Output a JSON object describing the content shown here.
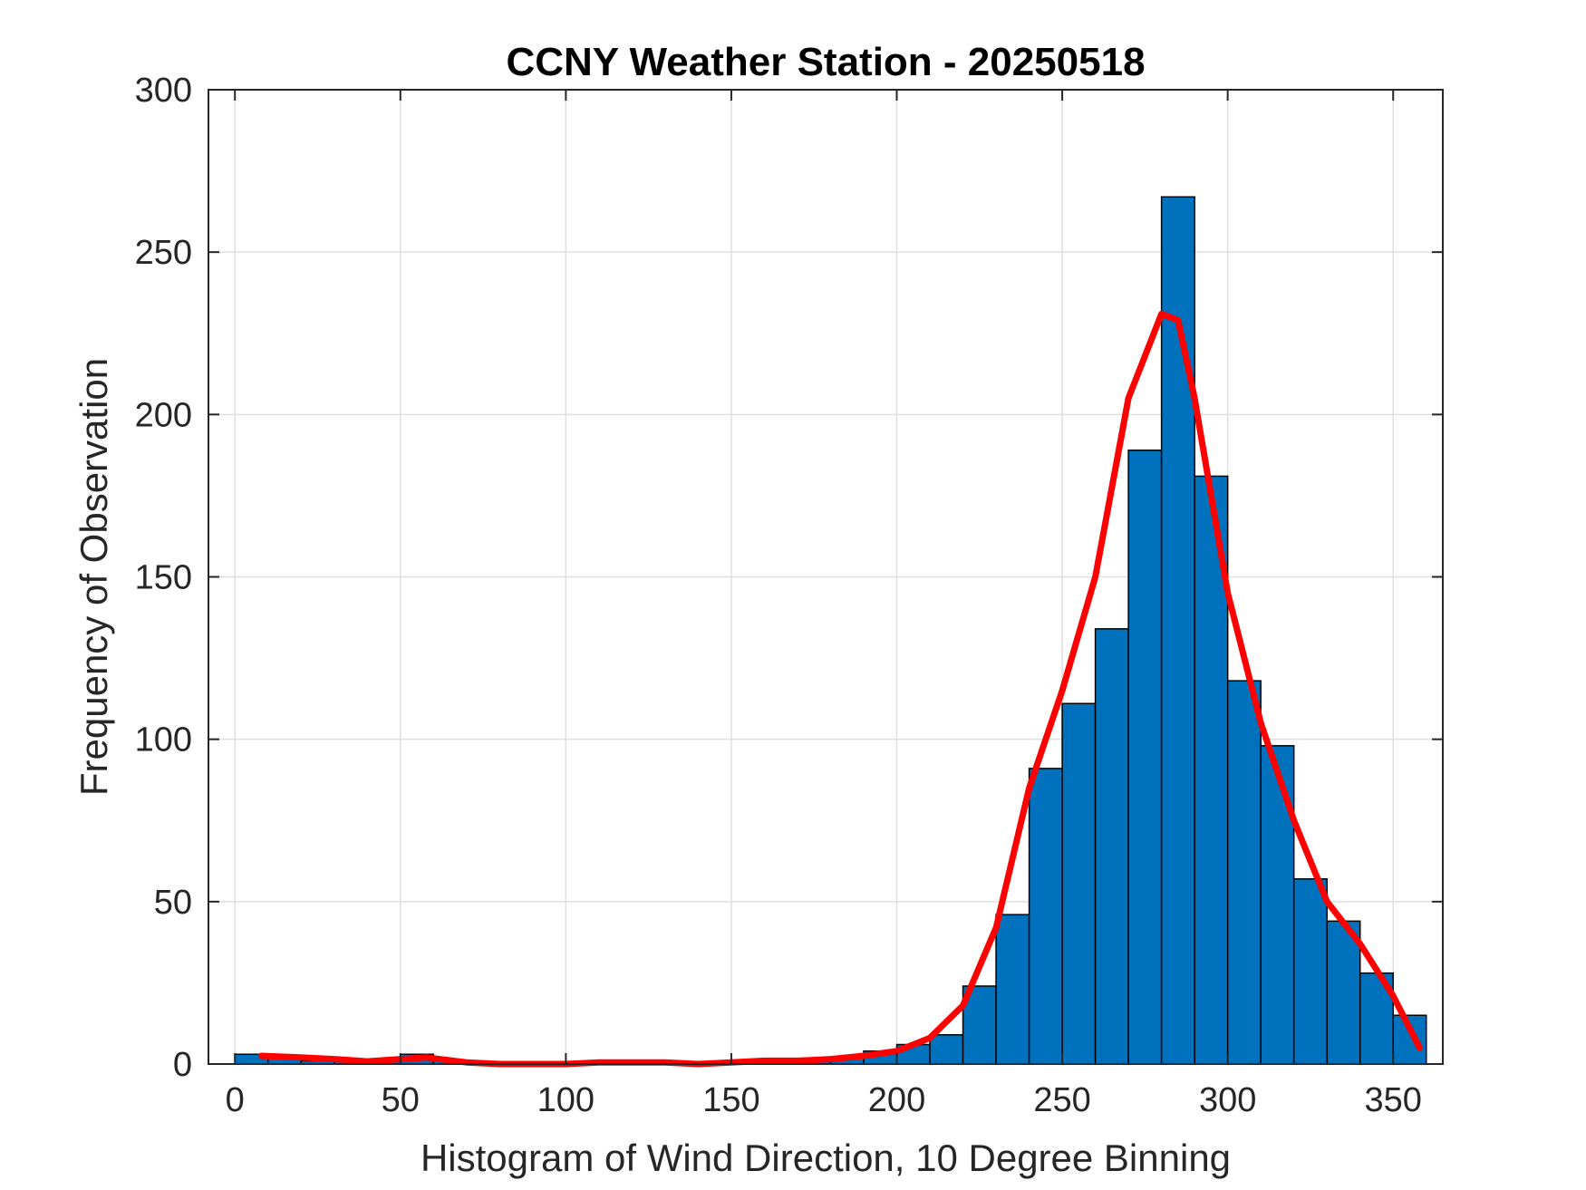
{
  "chart_data": {
    "type": "bar",
    "title": "CCNY Weather Station - 20250518",
    "xlabel": "Histogram of Wind Direction, 10 Degree Binning",
    "ylabel": "Frequency of Observation",
    "xlim": [
      -8,
      365
    ],
    "ylim": [
      0,
      300
    ],
    "x_ticks": [
      0,
      50,
      100,
      150,
      200,
      250,
      300,
      350
    ],
    "y_ticks": [
      0,
      50,
      100,
      150,
      200,
      250,
      300
    ],
    "grid": true,
    "bin_width": 10,
    "bin_edges": [
      0,
      10,
      20,
      30,
      40,
      50,
      60,
      70,
      80,
      90,
      100,
      110,
      120,
      130,
      140,
      150,
      160,
      170,
      180,
      190,
      200,
      210,
      220,
      230,
      240,
      250,
      260,
      270,
      280,
      290,
      300,
      310,
      320,
      330,
      340,
      350,
      360
    ],
    "values": [
      3,
      2,
      1,
      1,
      1,
      3,
      1,
      0,
      0,
      0,
      0,
      0,
      0,
      0,
      0,
      0,
      1,
      1,
      2,
      4,
      6,
      9,
      24,
      46,
      91,
      111,
      134,
      189,
      267,
      181,
      118,
      98,
      57,
      44,
      28,
      15
    ],
    "series": [
      {
        "type": "line",
        "x": [
          8,
          20,
          30,
          40,
          50,
          58,
          70,
          80,
          100,
          110,
          130,
          140,
          150,
          160,
          170,
          180,
          190,
          200,
          210,
          220,
          230,
          240,
          250,
          260,
          270,
          280,
          285,
          290,
          300,
          310,
          320,
          330,
          340,
          350,
          358
        ],
        "values": [
          2.5,
          2,
          1.5,
          0.8,
          1.5,
          2,
          0.5,
          0,
          0,
          0.5,
          0.5,
          0,
          0.5,
          1,
          1,
          1.5,
          2.5,
          4,
          8,
          18,
          42,
          85,
          115,
          150,
          205,
          231,
          229,
          205,
          145,
          105,
          75,
          50,
          37,
          21,
          5
        ]
      }
    ],
    "colors": {
      "bars": "#0072BD",
      "bar_edge": "#000000",
      "fit_line": "#FF0000",
      "grid": "#dfdfdf",
      "axes": "#262626"
    }
  }
}
